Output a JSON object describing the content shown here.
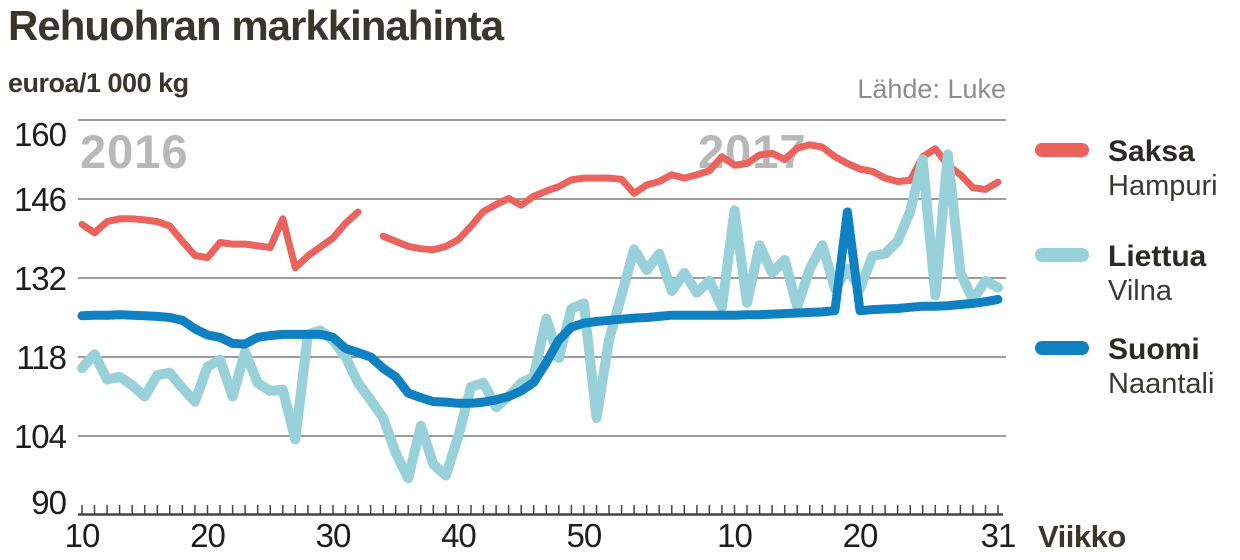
{
  "header": {
    "title": "Rehuohran markkinahinta",
    "unit": "euroa/1 000 kg",
    "source": "Lähde: Luke"
  },
  "chart_data": {
    "type": "line",
    "title": "Rehuohran markkinahinta",
    "ylabel": "euroa/1 000 kg",
    "xlabel": "Viikko",
    "source": "Lähde: Luke",
    "grid": "horizontal",
    "legend_position": "right",
    "watermarks": {
      "left": "2016",
      "right": "2017"
    },
    "y_axis": {
      "min": 90,
      "max": 160,
      "ticks": [
        160,
        146,
        132,
        118,
        104,
        90
      ]
    },
    "x_axis": {
      "label": "Viikko",
      "unit": "week number",
      "range_note": "weekly points from 2016 week 10 to 2017 week 31",
      "tick_labels": [
        {
          "label": "10",
          "index": 0
        },
        {
          "label": "20",
          "index": 10
        },
        {
          "label": "30",
          "index": 20
        },
        {
          "label": "40",
          "index": 30
        },
        {
          "label": "50",
          "index": 40
        },
        {
          "label": "10",
          "index": 52
        },
        {
          "label": "20",
          "index": 62
        },
        {
          "label": "31",
          "index": 73
        }
      ]
    },
    "series": [
      {
        "name": "Saksa",
        "city": "Hampuri",
        "color": "#ea635c",
        "stroke_width": 7,
        "values": [
          141.5,
          140.0,
          142.0,
          142.5,
          142.5,
          142.3,
          142.0,
          141.2,
          138.5,
          136.0,
          135.6,
          138.3,
          138.0,
          138.0,
          137.7,
          137.4,
          142.5,
          133.8,
          135.9,
          137.5,
          139.1,
          141.7,
          143.7,
          null,
          139.4,
          138.5,
          137.6,
          137.2,
          137.0,
          137.6,
          138.8,
          141.2,
          143.8,
          145.0,
          146.1,
          144.9,
          146.5,
          147.4,
          148.2,
          149.4,
          149.7,
          149.7,
          149.7,
          149.5,
          147.0,
          148.5,
          149.1,
          150.3,
          149.7,
          150.3,
          151.0,
          153.5,
          152.0,
          152.3,
          153.8,
          154.1,
          153.0,
          155.0,
          155.6,
          155.2,
          153.5,
          152.3,
          151.3,
          150.9,
          149.7,
          149.1,
          149.3,
          153.5,
          154.9,
          152.0,
          150.3,
          148.0,
          147.7,
          149.0
        ]
      },
      {
        "name": "Liettua",
        "city": "Vilna",
        "color": "#99d1da",
        "stroke_width": 10,
        "values": [
          116.0,
          118.5,
          114.0,
          114.5,
          113.0,
          111.0,
          114.8,
          115.2,
          112.5,
          110.1,
          116.3,
          117.5,
          111.0,
          118.9,
          113.4,
          112.0,
          112.2,
          103.4,
          122.0,
          122.7,
          121.0,
          118.0,
          113.4,
          110.4,
          107.2,
          101.0,
          96.5,
          105.8,
          99.0,
          97.0,
          104.0,
          112.7,
          113.4,
          109.1,
          111.0,
          113.4,
          114.5,
          124.8,
          117.8,
          126.6,
          127.5,
          107.2,
          121.0,
          129.0,
          137.1,
          133.4,
          136.3,
          129.7,
          132.9,
          129.4,
          131.5,
          126.8,
          144.0,
          127.6,
          137.8,
          132.9,
          135.2,
          126.9,
          133.6,
          137.8,
          130.1,
          133.6,
          130.1,
          135.9,
          136.3,
          138.5,
          143.8,
          153.0,
          128.9,
          153.9,
          133.0,
          128.1,
          131.5,
          130.3
        ]
      },
      {
        "name": "Suomi",
        "city": "Naantali",
        "color": "#0f81c2",
        "stroke_width": 9,
        "values": [
          125.3,
          125.4,
          125.4,
          125.5,
          125.4,
          125.3,
          125.2,
          125.0,
          124.5,
          123.0,
          121.9,
          121.5,
          120.4,
          120.3,
          121.5,
          121.8,
          122.0,
          122.0,
          122.0,
          122.0,
          121.5,
          119.5,
          118.8,
          118.0,
          116.0,
          114.5,
          111.6,
          110.8,
          110.1,
          110.0,
          109.8,
          109.8,
          110.0,
          110.4,
          111.0,
          112.0,
          113.5,
          117.0,
          121.0,
          123.3,
          124.0,
          124.3,
          124.5,
          124.7,
          124.9,
          125.0,
          125.2,
          125.4,
          125.4,
          125.4,
          125.4,
          125.4,
          125.4,
          125.5,
          125.5,
          125.6,
          125.7,
          125.8,
          125.9,
          126.0,
          126.2,
          143.7,
          126.2,
          126.4,
          126.5,
          126.6,
          126.8,
          127.0,
          127.0,
          127.1,
          127.3,
          127.5,
          127.8,
          128.2
        ]
      }
    ]
  }
}
